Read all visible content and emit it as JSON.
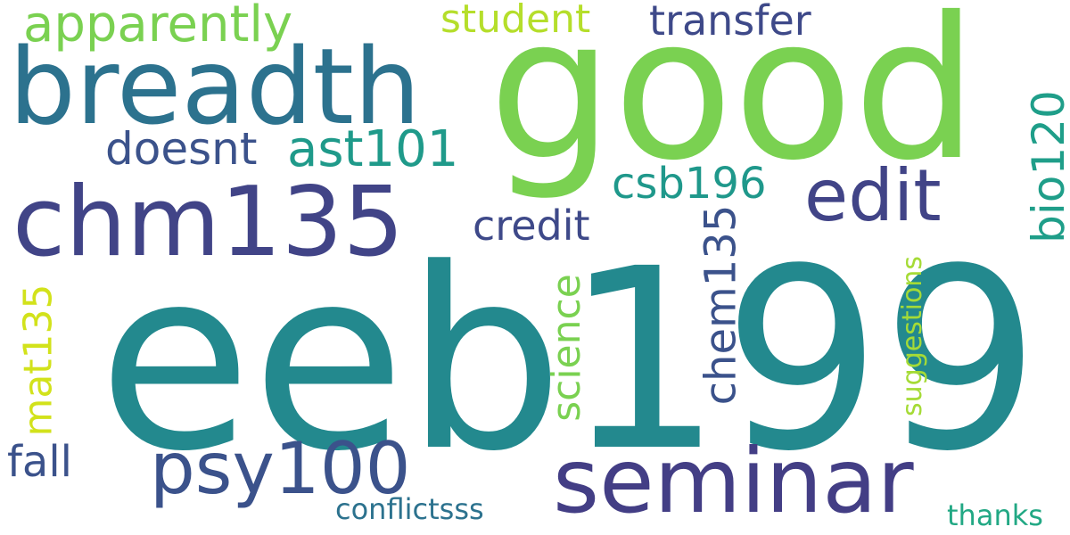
{
  "words": [
    {
      "text": "eeb199",
      "color": "#23898e"
    },
    {
      "text": "good",
      "color": "#7ad151"
    },
    {
      "text": "breadth",
      "color": "#2c728e"
    },
    {
      "text": "chm135",
      "color": "#414487"
    },
    {
      "text": "seminar",
      "color": "#433e85"
    },
    {
      "text": "psy100",
      "color": "#3b528b"
    },
    {
      "text": "edit",
      "color": "#414487"
    },
    {
      "text": "apparently",
      "color": "#7ad151"
    },
    {
      "text": "transfer",
      "color": "#3e4989"
    },
    {
      "text": "student",
      "color": "#b5de2b"
    },
    {
      "text": "ast101",
      "color": "#1f9a8a"
    },
    {
      "text": "doesnt",
      "color": "#3b528b"
    },
    {
      "text": "csb196",
      "color": "#1f988b"
    },
    {
      "text": "credit",
      "color": "#3e4989"
    },
    {
      "text": "bio120",
      "color": "#1f9e89"
    },
    {
      "text": "chem135",
      "color": "#3b528b"
    },
    {
      "text": "science",
      "color": "#7ad151"
    },
    {
      "text": "mat135",
      "color": "#d2e21b"
    },
    {
      "text": "fall",
      "color": "#3b528b"
    },
    {
      "text": "conflictsss",
      "color": "#2c728e"
    },
    {
      "text": "suggestions",
      "color": "#a5db36"
    },
    {
      "text": "thanks",
      "color": "#22a884"
    }
  ]
}
